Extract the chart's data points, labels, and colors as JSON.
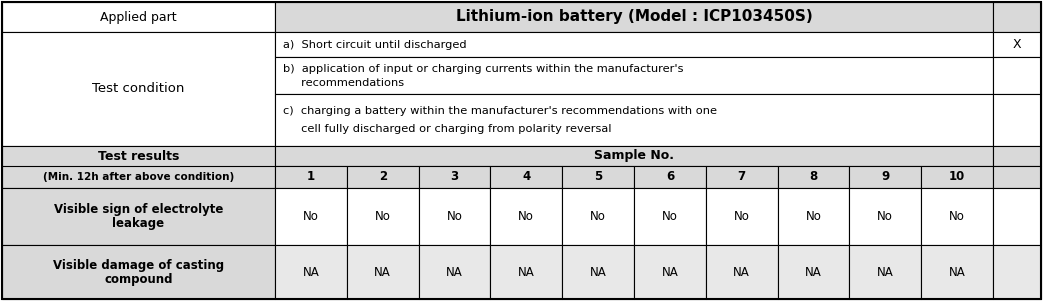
{
  "title_row": {
    "col1": "Applied part",
    "col2": "Lithium-ion battery (Model : ICP103450S)"
  },
  "test_condition_rows": {
    "col1": "Test condition",
    "cond_a": "a)  Short circuit until discharged",
    "cond_b_l1": "b)  application of input or charging currents within the manufacturer's",
    "cond_b_l2": "     recommendations",
    "cond_c_l1": "c)  charging a battery within the manufacturer's recommendations with one",
    "cond_c_l2": "     cell fully discharged or charging from polarity reversal",
    "mark": "X"
  },
  "sample_header": {
    "col1_line1": "Test results",
    "col1_line2": "(Min. 12h after above condition)",
    "label": "Sample No.",
    "numbers": [
      "1",
      "2",
      "3",
      "4",
      "5",
      "6",
      "7",
      "8",
      "9",
      "10"
    ]
  },
  "row_leakage": {
    "label_line1": "Visible sign of electrolyte",
    "label_line2": "leakage",
    "values": [
      "No",
      "No",
      "No",
      "No",
      "No",
      "No",
      "No",
      "No",
      "No",
      "No"
    ]
  },
  "row_damage": {
    "label_line1": "Visible damage of casting",
    "label_line2": "compound",
    "values": [
      "NA",
      "NA",
      "NA",
      "NA",
      "NA",
      "NA",
      "NA",
      "NA",
      "NA",
      "NA"
    ]
  },
  "colors": {
    "header_bg": "#D9D9D9",
    "white": "#FFFFFF",
    "light_gray": "#E8E8E8",
    "border": "#000000"
  },
  "figsize": [
    10.43,
    3.01
  ],
  "dpi": 100
}
